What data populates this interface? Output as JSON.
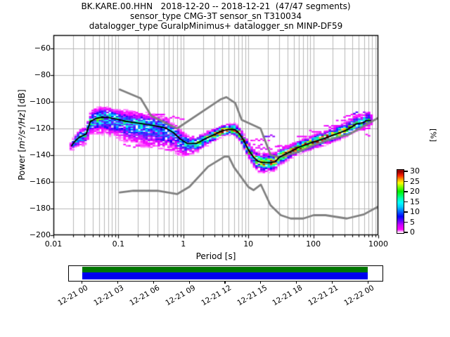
{
  "title": {
    "line1": "BK.KARE.00.HHN   2018-12-20 -- 2018-12-21  (47/47 segments)",
    "line2": "sensor_type CMG-3T sensor_sn T310034",
    "line3": "datalogger_type GuralpMinimus+ datalogger_sn MINP-DF59"
  },
  "axes": {
    "xlabel": "Period [s]",
    "ylabel_prefix": "Power [",
    "ylabel_math": "m²/s⁴/Hz",
    "ylabel_suffix": "] [dB]",
    "x_ticks": [
      {
        "v": 0.01,
        "label": "0.01"
      },
      {
        "v": 0.1,
        "label": "0.1"
      },
      {
        "v": 1,
        "label": "1"
      },
      {
        "v": 10,
        "label": "10"
      },
      {
        "v": 100,
        "label": "100"
      },
      {
        "v": 1000,
        "label": "1000"
      }
    ],
    "y_ticks": [
      {
        "v": -60,
        "label": "−60"
      },
      {
        "v": -80,
        "label": "−80"
      },
      {
        "v": -100,
        "label": "−100"
      },
      {
        "v": -120,
        "label": "−120"
      },
      {
        "v": -140,
        "label": "−140"
      },
      {
        "v": -160,
        "label": "−160"
      },
      {
        "v": -180,
        "label": "−180"
      },
      {
        "v": -200,
        "label": "−200"
      }
    ],
    "xlim": [
      0.01,
      1000
    ],
    "ylim": [
      -200,
      -50
    ],
    "grid_color": "#b0b0b0"
  },
  "colorbar": {
    "label": "[%]",
    "ticks": [
      "30",
      "25",
      "20",
      "15",
      "10",
      "5",
      "0"
    ],
    "tick_values": [
      30,
      25,
      20,
      15,
      10,
      5,
      0
    ],
    "vmax": 31,
    "stops": [
      [
        0.0,
        "#ffffff"
      ],
      [
        0.02,
        "#ffccff"
      ],
      [
        0.06,
        "#ff00ff"
      ],
      [
        0.13,
        "#cc00ff"
      ],
      [
        0.2,
        "#6600ff"
      ],
      [
        0.27,
        "#0000ff"
      ],
      [
        0.35,
        "#0066ff"
      ],
      [
        0.43,
        "#00ccff"
      ],
      [
        0.5,
        "#00ffff"
      ],
      [
        0.57,
        "#00ffaa"
      ],
      [
        0.63,
        "#00ff44"
      ],
      [
        0.68,
        "#00ee00"
      ],
      [
        0.76,
        "#88ff00"
      ],
      [
        0.82,
        "#ffff00"
      ],
      [
        0.88,
        "#ff9900"
      ],
      [
        0.94,
        "#ff2200"
      ],
      [
        1.0,
        "#990000"
      ]
    ]
  },
  "timeline": {
    "labels": [
      "12-21 00",
      "12-21 03",
      "12-21 06",
      "12-21 09",
      "12-21 12",
      "12-21 15",
      "12-21 18",
      "12-21 21",
      "12-22 00"
    ],
    "used_color": "#007700",
    "data_color": "#0000ee"
  },
  "chart_data": {
    "type": "heatmap",
    "title": "BK.KARE.00.HHN 2018-12-20 -- 2018-12-21 (47/47 segments)",
    "xlabel": "Period [s]",
    "ylabel": "Power [m2/s4/Hz] [dB]",
    "zlabel": "[%]",
    "xlim": [
      0.01,
      1000
    ],
    "ylim": [
      -200,
      -50
    ],
    "zlim": [
      0,
      30
    ],
    "x_scale": "log",
    "period_step_octaves": 0.125,
    "db_bin_width": 1,
    "mode_line_color": "#000000",
    "noise_model_color": "#808080",
    "mode_line": [
      [
        0.019,
        -133
      ],
      [
        0.021,
        -130
      ],
      [
        0.025,
        -126.5
      ],
      [
        0.029,
        -125.2
      ],
      [
        0.032,
        -124
      ],
      [
        0.034,
        -120
      ],
      [
        0.037,
        -114.8
      ],
      [
        0.045,
        -112.5
      ],
      [
        0.055,
        -111.6
      ],
      [
        0.07,
        -111.8
      ],
      [
        0.09,
        -112.8
      ],
      [
        0.13,
        -114.6
      ],
      [
        0.2,
        -116
      ],
      [
        0.3,
        -117.3
      ],
      [
        0.45,
        -118.8
      ],
      [
        0.55,
        -120
      ],
      [
        0.7,
        -123
      ],
      [
        0.9,
        -128
      ],
      [
        1.15,
        -131.3
      ],
      [
        1.6,
        -131.2
      ],
      [
        2.2,
        -127.6
      ],
      [
        3,
        -124.5
      ],
      [
        4,
        -121.8
      ],
      [
        5,
        -120.6
      ],
      [
        6.2,
        -120.8
      ],
      [
        7.2,
        -123.5
      ],
      [
        8.5,
        -129
      ],
      [
        10,
        -136
      ],
      [
        12,
        -141.5
      ],
      [
        14,
        -144.5
      ],
      [
        16,
        -145.5
      ],
      [
        22,
        -145.5
      ],
      [
        26,
        -144.8
      ],
      [
        30,
        -141.5
      ],
      [
        40,
        -138.5
      ],
      [
        60,
        -134
      ],
      [
        95,
        -130.5
      ],
      [
        140,
        -127.8
      ],
      [
        200,
        -125
      ],
      [
        270,
        -122.8
      ],
      [
        330,
        -121
      ],
      [
        400,
        -118.5
      ],
      [
        460,
        -116.5
      ],
      [
        540,
        -116
      ],
      [
        600,
        -115.5
      ],
      [
        650,
        -114
      ],
      [
        760,
        -114
      ]
    ],
    "noise_model_high": [
      [
        0.105,
        -90.8
      ],
      [
        0.22,
        -97.4
      ],
      [
        0.32,
        -110.5
      ],
      [
        0.8,
        -120
      ],
      [
        3.8,
        -98
      ],
      [
        4.6,
        -96.5
      ],
      [
        6.3,
        -101
      ],
      [
        7.9,
        -113.5
      ],
      [
        15.4,
        -120
      ],
      [
        22,
        -140
      ],
      [
        30,
        -141.5
      ],
      [
        60,
        -137.5
      ],
      [
        100,
        -132.5
      ],
      [
        200,
        -127.5
      ],
      [
        354.8,
        -124.5
      ],
      [
        1000,
        -112
      ]
    ],
    "noise_model_low": [
      [
        0.105,
        -168
      ],
      [
        0.17,
        -166.7
      ],
      [
        0.4,
        -166.7
      ],
      [
        0.8,
        -169.2
      ],
      [
        1.24,
        -163.7
      ],
      [
        2.4,
        -148.6
      ],
      [
        4.3,
        -141.1
      ],
      [
        5,
        -141.1
      ],
      [
        6,
        -149
      ],
      [
        10,
        -163.8
      ],
      [
        12,
        -166.2
      ],
      [
        15.6,
        -162.1
      ],
      [
        21.9,
        -177.5
      ],
      [
        31.6,
        -185
      ],
      [
        45,
        -187.5
      ],
      [
        70,
        -187.5
      ],
      [
        101,
        -185
      ],
      [
        154,
        -185
      ],
      [
        328,
        -187.5
      ],
      [
        600,
        -184.4
      ],
      [
        1000,
        -178.5
      ]
    ],
    "histogram": {
      "period_range": [
        0.0185,
        790
      ],
      "anchors": [
        {
          "p": 0.018,
          "up": 4,
          "dn": 5,
          "peak": 11
        },
        {
          "p": 0.03,
          "up": 6,
          "dn": 8,
          "peak": 13
        },
        {
          "p": 0.05,
          "up": 8,
          "dn": 12,
          "peak": 14
        },
        {
          "p": 0.09,
          "up": 8,
          "dn": 14,
          "peak": 12
        },
        {
          "p": 0.2,
          "up": 9,
          "dn": 17,
          "peak": 11
        },
        {
          "p": 0.4,
          "up": 9,
          "dn": 18,
          "peak": 10.5
        },
        {
          "p": 0.8,
          "up": 8,
          "dn": 14,
          "peak": 10.5
        },
        {
          "p": 1.3,
          "up": 6,
          "dn": 8,
          "peak": 13
        },
        {
          "p": 2.2,
          "up": 5,
          "dn": 6,
          "peak": 16
        },
        {
          "p": 3.5,
          "up": 4,
          "dn": 4.5,
          "peak": 27
        },
        {
          "p": 5.5,
          "up": 4,
          "dn": 4,
          "peak": 30
        },
        {
          "p": 7.5,
          "up": 5,
          "dn": 5,
          "peak": 24
        },
        {
          "p": 10,
          "up": 6,
          "dn": 6,
          "peak": 18
        },
        {
          "p": 15,
          "up": 7,
          "dn": 7.5,
          "peak": 20
        },
        {
          "p": 22,
          "up": 7,
          "dn": 7,
          "peak": 21
        },
        {
          "p": 30,
          "up": 6,
          "dn": 6,
          "peak": 23
        },
        {
          "p": 45,
          "up": 5,
          "dn": 5,
          "peak": 26
        },
        {
          "p": 90,
          "up": 5,
          "dn": 5,
          "peak": 26
        },
        {
          "p": 180,
          "up": 5.5,
          "dn": 5,
          "peak": 26
        },
        {
          "p": 320,
          "up": 6,
          "dn": 5,
          "peak": 24
        },
        {
          "p": 500,
          "up": 7,
          "dn": 5.5,
          "peak": 16
        },
        {
          "p": 760,
          "up": 7,
          "dn": 5,
          "peak": 13
        }
      ],
      "outlier_streaks": [
        {
          "p0": 0.04,
          "p1": 0.07,
          "db": -105.5,
          "pct": 2
        },
        {
          "p0": 0.09,
          "p1": 0.22,
          "db": -108.5,
          "pct": 2
        },
        {
          "p0": 0.25,
          "p1": 0.5,
          "db": -109.5,
          "pct": 2.5
        },
        {
          "p0": 0.5,
          "p1": 1.1,
          "db": -112,
          "pct": 2
        },
        {
          "p0": 0.12,
          "p1": 0.3,
          "db": -133,
          "pct": 2
        },
        {
          "p0": 0.5,
          "p1": 1.0,
          "db": -136,
          "pct": 2.5
        },
        {
          "p0": 9,
          "p1": 16,
          "db": -132,
          "pct": 2.5
        },
        {
          "p0": 11,
          "p1": 22,
          "db": -129,
          "pct": 2
        },
        {
          "p0": 13,
          "p1": 30,
          "db": -134.5,
          "pct": 3
        },
        {
          "p0": 10,
          "p1": 18,
          "db": -140,
          "pct": 3
        },
        {
          "p0": 17,
          "p1": 28,
          "db": -126,
          "pct": 5
        },
        {
          "p0": 28,
          "p1": 45,
          "db": -133,
          "pct": 2.5
        },
        {
          "p0": 55,
          "p1": 110,
          "db": -126,
          "pct": 2.5
        },
        {
          "p0": 90,
          "p1": 160,
          "db": -122.5,
          "pct": 2
        },
        {
          "p0": 150,
          "p1": 260,
          "db": -118,
          "pct": 2.5
        },
        {
          "p0": 230,
          "p1": 420,
          "db": -114,
          "pct": 2.5
        },
        {
          "p0": 300,
          "p1": 560,
          "db": -110.5,
          "pct": 2
        },
        {
          "p0": 420,
          "p1": 780,
          "db": -108.8,
          "pct": 6
        },
        {
          "p0": 500,
          "p1": 780,
          "db": -120,
          "pct": 2.5
        },
        {
          "p0": 560,
          "p1": 780,
          "db": -124.5,
          "pct": 2
        },
        {
          "p0": 600,
          "p1": 780,
          "db": -112,
          "pct": 6
        }
      ]
    }
  }
}
